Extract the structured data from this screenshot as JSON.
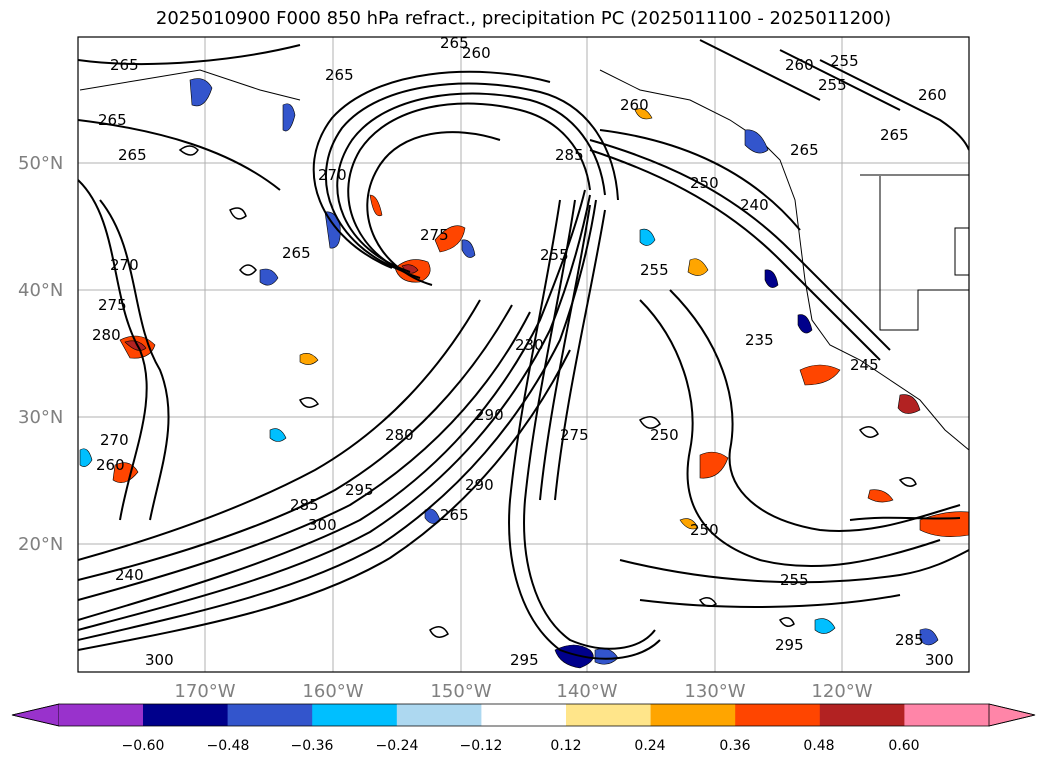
{
  "title": "2025010900 F000 850 hPa refract., precipitation PC (2025011100 - 2025011200)",
  "axes": {
    "lat_ticks": [
      "50°N",
      "40°N",
      "30°N",
      "20°N"
    ],
    "lon_ticks": [
      "170°W",
      "160°W",
      "150°W",
      "140°W",
      "130°W",
      "120°W"
    ]
  },
  "colorbar": {
    "ticks": [
      "−0.60",
      "−0.48",
      "−0.36",
      "−0.24",
      "−0.12",
      "0.12",
      "0.24",
      "0.36",
      "0.48",
      "0.60"
    ],
    "colors": [
      "#9932cc",
      "#00008b",
      "#3355cc",
      "#00bfff",
      "#add8f0",
      "#ffffff",
      "#ffe58a",
      "#ffa500",
      "#ff4500",
      "#b22222",
      "#ff85a8"
    ]
  },
  "contour_labels": [
    {
      "text": "265"
    },
    {
      "text": "265"
    },
    {
      "text": "260"
    },
    {
      "text": "265"
    },
    {
      "text": "265"
    },
    {
      "text": "265"
    },
    {
      "text": "255"
    },
    {
      "text": "255"
    },
    {
      "text": "260"
    },
    {
      "text": "265"
    },
    {
      "text": "260"
    },
    {
      "text": "265"
    },
    {
      "text": "250"
    },
    {
      "text": "285"
    },
    {
      "text": "275"
    },
    {
      "text": "270"
    },
    {
      "text": "265"
    },
    {
      "text": "270"
    },
    {
      "text": "275"
    },
    {
      "text": "280"
    },
    {
      "text": "235"
    },
    {
      "text": "245"
    },
    {
      "text": "250"
    },
    {
      "text": "280"
    },
    {
      "text": "290"
    },
    {
      "text": "295"
    },
    {
      "text": "300"
    },
    {
      "text": "255"
    },
    {
      "text": "290"
    },
    {
      "text": "300"
    },
    {
      "text": "295"
    },
    {
      "text": "285"
    },
    {
      "text": "230"
    },
    {
      "text": "255"
    },
    {
      "text": "250"
    },
    {
      "text": "255"
    },
    {
      "text": "295"
    },
    {
      "text": "285"
    },
    {
      "text": "300"
    },
    {
      "text": "240"
    },
    {
      "text": "270"
    },
    {
      "text": "240"
    },
    {
      "text": "265"
    },
    {
      "text": "275"
    },
    {
      "text": "260"
    },
    {
      "text": "260"
    }
  ],
  "map_features": [
    "850 hPa refractivity contours (black lines)",
    "precipitation PC shading (filled)"
  ]
}
